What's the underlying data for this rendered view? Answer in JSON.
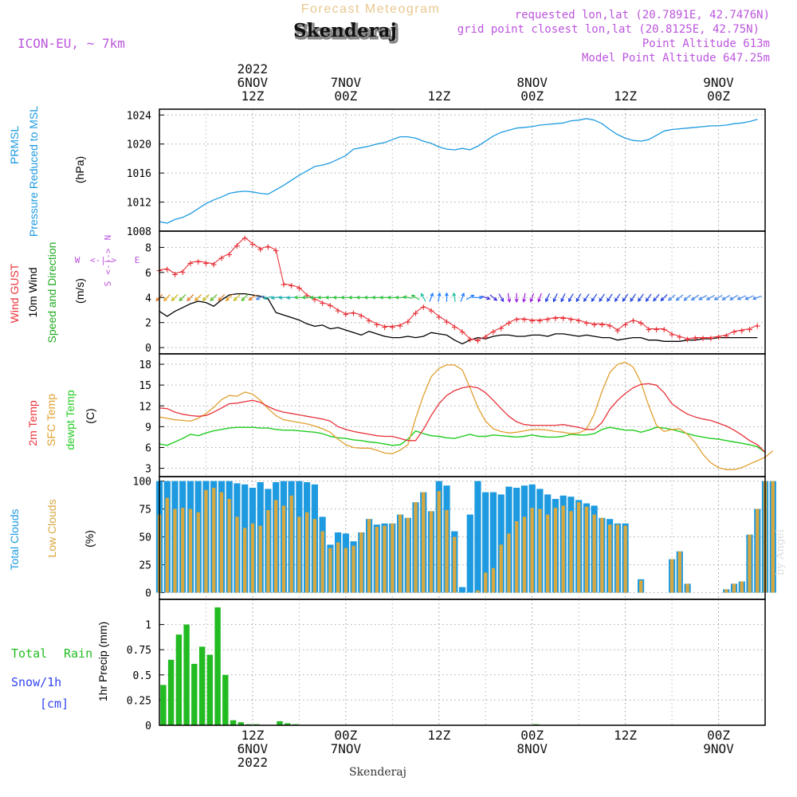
{
  "header": {
    "app_title": "Forecast Meteogram",
    "model": "ICON-EU, ~ 7km",
    "location": "Skenderaj",
    "requested": "requested lon,lat (20.7891E, 42.7476N)",
    "grid_point": "grid point closest lon,lat (20.8125E, 42.75N)",
    "point_altitude": "Point Altitude 613m",
    "model_altitude": "Model Point Altitude 647.25m",
    "credit": "by Angel",
    "footer_location": "Skenderaj"
  },
  "top_axis": {
    "labels": [
      {
        "t": 12,
        "lines": [
          "2022",
          "6NOV",
          "12Z"
        ]
      },
      {
        "t": 24,
        "lines": [
          "7NOV",
          "00Z"
        ]
      },
      {
        "t": 36,
        "lines": [
          "12Z"
        ]
      },
      {
        "t": 48,
        "lines": [
          "8NOV",
          "00Z"
        ]
      },
      {
        "t": 60,
        "lines": [
          "12Z"
        ]
      },
      {
        "t": 72,
        "lines": [
          "9NOV",
          "00Z"
        ]
      }
    ]
  },
  "bottom_axis": {
    "labels": [
      {
        "t": 12,
        "lines": [
          "12Z",
          "6NOV",
          "2022"
        ]
      },
      {
        "t": 24,
        "lines": [
          "00Z",
          "7NOV"
        ]
      },
      {
        "t": 36,
        "lines": [
          "12Z"
        ]
      },
      {
        "t": 48,
        "lines": [
          "00Z",
          "8NOV"
        ]
      },
      {
        "t": 60,
        "lines": [
          "12Z"
        ]
      },
      {
        "t": 72,
        "lines": [
          "00Z",
          "9NOV"
        ]
      }
    ]
  },
  "colors": {
    "pressure": "#1e9be0",
    "gust": "#e8333a",
    "wind": "#000000",
    "dir_label": "#22aa22",
    "temp": "#e8333a",
    "sfc": "#e0a030",
    "dew": "#22cc22",
    "total_cloud": "#1e9be0",
    "low_cloud": "#d8a840",
    "rain": "#22bb22",
    "snow": "#3344ee",
    "header": "#bb55dd",
    "title": "#e8c890"
  },
  "chart_data": [
    {
      "type": "line",
      "name": "pressure",
      "title": "PRMSL Pressure Reduced to MSL",
      "ylabel_lines": [
        "PRMSL",
        "Pressure Reduced to MSL"
      ],
      "unit": "(hPa)",
      "yticks": [
        1008,
        1012,
        1016,
        1020,
        1024
      ],
      "ylim": [
        1008,
        1024.8
      ],
      "x_start_hour": 0,
      "x_step_hours": 1,
      "values": [
        1009.3,
        1009.1,
        1009.6,
        1009.9,
        1010.4,
        1011.1,
        1011.8,
        1012.3,
        1012.7,
        1013.2,
        1013.4,
        1013.5,
        1013.4,
        1013.2,
        1013.1,
        1013.7,
        1014.3,
        1015.0,
        1015.7,
        1016.3,
        1016.9,
        1017.1,
        1017.4,
        1017.9,
        1018.4,
        1019.3,
        1019.5,
        1019.7,
        1020.0,
        1020.2,
        1020.6,
        1021.0,
        1021.0,
        1020.8,
        1020.4,
        1020.1,
        1019.6,
        1019.3,
        1019.2,
        1019.4,
        1019.2,
        1019.7,
        1020.4,
        1021.1,
        1021.6,
        1021.9,
        1022.2,
        1022.3,
        1022.4,
        1022.6,
        1022.7,
        1022.8,
        1022.9,
        1023.2,
        1023.3,
        1023.5,
        1023.3,
        1022.8,
        1022.0,
        1021.3,
        1020.8,
        1020.5,
        1020.4,
        1020.6,
        1021.2,
        1021.8,
        1022.0,
        1022.1,
        1022.2,
        1022.3,
        1022.4,
        1022.5,
        1022.5,
        1022.6,
        1022.8,
        1022.9,
        1023.1,
        1023.4
      ]
    },
    {
      "type": "line",
      "name": "wind",
      "title": "Wind GUST, 10m Wind Speed and Direction",
      "unit": "(m/s)",
      "compass_labels": {
        "n": "N",
        "w": "W",
        "e": "E",
        "s": "S"
      },
      "yticks": [
        0,
        2,
        4,
        6,
        8
      ],
      "ylim": [
        -0.5,
        9.3
      ],
      "x_start_hour": 0,
      "x_step_hours": 1,
      "series": [
        {
          "name": "Wind GUST",
          "values": [
            6.2,
            6.3,
            5.9,
            6.1,
            6.8,
            6.9,
            6.8,
            6.7,
            7.2,
            7.5,
            8.2,
            8.8,
            8.3,
            7.9,
            8.1,
            7.8,
            5.1,
            5.0,
            4.8,
            4.2,
            3.9,
            3.6,
            3.4,
            3.0,
            2.7,
            2.8,
            2.6,
            2.2,
            1.9,
            1.7,
            1.7,
            1.8,
            2.1,
            2.8,
            3.3,
            3.0,
            2.5,
            2.1,
            1.7,
            1.3,
            0.7,
            0.6,
            0.9,
            1.3,
            1.6,
            2.0,
            2.3,
            2.3,
            2.2,
            2.2,
            2.3,
            2.4,
            2.4,
            2.3,
            2.2,
            2.0,
            1.9,
            1.9,
            1.8,
            1.4,
            1.9,
            2.2,
            2.0,
            1.5,
            1.5,
            1.5,
            1.1,
            0.9,
            0.7,
            0.8,
            0.8,
            0.8,
            0.9,
            1.0,
            1.3,
            1.4,
            1.5,
            1.8
          ]
        },
        {
          "name": "10m Wind",
          "values": [
            2.9,
            2.5,
            2.9,
            3.2,
            3.5,
            3.7,
            3.6,
            3.3,
            3.8,
            4.2,
            4.3,
            4.3,
            4.2,
            4.1,
            3.9,
            2.8,
            2.6,
            2.4,
            2.2,
            1.9,
            1.7,
            1.8,
            1.5,
            1.6,
            1.4,
            1.2,
            1.0,
            1.3,
            1.1,
            0.9,
            0.8,
            0.8,
            0.9,
            0.8,
            0.9,
            1.2,
            1.1,
            1.0,
            0.6,
            0.3,
            0.6,
            0.8,
            0.7,
            0.9,
            1.0,
            1.0,
            0.9,
            0.9,
            1.0,
            1.0,
            0.9,
            1.1,
            1.1,
            1.0,
            0.9,
            1.0,
            0.9,
            0.8,
            0.8,
            0.6,
            0.7,
            0.8,
            0.8,
            0.6,
            0.6,
            0.5,
            0.5,
            0.5,
            0.6,
            0.6,
            0.7,
            0.7,
            0.8,
            0.8,
            0.8,
            0.8,
            0.8,
            0.8
          ]
        }
      ],
      "direction": {
        "name": "Direction",
        "note": "direction the wind blows toward, degrees (0=N, 90=E)",
        "x_start_hour": 0,
        "x_step_hours": 1,
        "values": [
          225,
          225,
          225,
          225,
          225,
          225,
          225,
          225,
          225,
          225,
          225,
          225,
          235,
          245,
          255,
          260,
          265,
          265,
          270,
          270,
          270,
          270,
          270,
          270,
          270,
          270,
          270,
          270,
          270,
          270,
          270,
          270,
          280,
          300,
          330,
          20,
          10,
          0,
          350,
          20,
          60,
          90,
          110,
          130,
          150,
          170,
          180,
          190,
          200,
          200,
          205,
          205,
          205,
          210,
          210,
          215,
          215,
          215,
          215,
          215,
          215,
          215,
          215,
          215,
          220,
          225,
          230,
          230,
          230,
          235,
          240,
          240,
          240,
          240,
          240,
          245,
          245,
          250
        ]
      }
    },
    {
      "type": "line",
      "name": "temperature",
      "title": "2m Temp, SFC Temp, dewpt Temp",
      "unit": "(C)",
      "yticks": [
        3,
        6,
        9,
        12,
        15,
        18
      ],
      "ylim": [
        1.8,
        19.5
      ],
      "x_start_hour": 0,
      "x_step_hours": 1,
      "series": [
        {
          "name": "2m Temp",
          "values": [
            11.7,
            11.6,
            11.1,
            10.8,
            10.6,
            10.5,
            10.6,
            11.1,
            11.7,
            12.3,
            12.4,
            12.6,
            12.8,
            12.5,
            11.9,
            11.4,
            11.1,
            10.9,
            10.7,
            10.5,
            10.3,
            10.1,
            9.8,
            9.0,
            8.6,
            8.3,
            8.1,
            7.9,
            7.7,
            7.6,
            7.6,
            7.3,
            7.0,
            7.0,
            8.6,
            10.6,
            12.3,
            13.5,
            14.2,
            14.6,
            14.8,
            14.6,
            13.9,
            12.8,
            11.6,
            10.5,
            9.7,
            9.3,
            9.2,
            9.2,
            9.2,
            9.2,
            9.3,
            9.1,
            8.9,
            8.6,
            8.6,
            9.6,
            11.5,
            12.8,
            13.8,
            14.6,
            15.1,
            15.2,
            15.0,
            13.9,
            12.3,
            11.5,
            10.8,
            10.4,
            10.1,
            9.9,
            9.5,
            9.1,
            8.5,
            7.8,
            7.0,
            6.4,
            5.3
          ]
        },
        {
          "name": "SFC Temp",
          "values": [
            10.4,
            10.2,
            10.0,
            9.9,
            9.8,
            10.2,
            10.9,
            11.8,
            12.9,
            13.5,
            13.4,
            14.0,
            13.7,
            12.8,
            11.6,
            10.6,
            10.0,
            9.8,
            9.6,
            9.4,
            9.1,
            8.7,
            8.2,
            7.2,
            6.4,
            6.0,
            5.9,
            5.9,
            5.6,
            5.2,
            5.1,
            5.6,
            6.4,
            10.2,
            13.5,
            16.2,
            17.4,
            17.9,
            17.9,
            17.2,
            14.6,
            11.8,
            9.8,
            8.7,
            8.3,
            8.1,
            8.2,
            8.4,
            8.6,
            8.6,
            8.5,
            8.3,
            8.2,
            8.0,
            8.1,
            8.6,
            10.8,
            14.1,
            16.8,
            18.0,
            18.3,
            17.6,
            15.4,
            12.1,
            9.2,
            8.3,
            8.6,
            8.7,
            7.9,
            6.7,
            5.0,
            3.8,
            3.1,
            2.8,
            2.8,
            3.1,
            3.6,
            4.1,
            4.6,
            5.5
          ]
        },
        {
          "name": "dewpt Temp",
          "values": [
            6.5,
            6.3,
            6.8,
            7.3,
            7.9,
            7.7,
            8.1,
            8.4,
            8.6,
            8.8,
            8.9,
            8.9,
            8.9,
            8.8,
            8.8,
            8.6,
            8.5,
            8.5,
            8.4,
            8.3,
            8.2,
            8.0,
            7.6,
            7.4,
            7.3,
            7.1,
            7.0,
            6.8,
            6.7,
            6.5,
            6.3,
            6.4,
            7.2,
            8.4,
            8.0,
            7.7,
            7.6,
            7.4,
            7.3,
            7.6,
            7.9,
            7.6,
            7.6,
            7.8,
            7.7,
            7.6,
            7.5,
            7.6,
            7.8,
            7.6,
            7.5,
            7.5,
            7.6,
            7.9,
            7.8,
            7.8,
            8.0,
            8.6,
            8.9,
            8.7,
            8.5,
            8.5,
            8.2,
            8.5,
            8.9,
            8.8,
            8.6,
            8.3,
            8.0,
            7.7,
            7.5,
            7.3,
            7.2,
            7.0,
            6.8,
            6.6,
            6.4,
            6.1,
            5.3
          ]
        }
      ]
    },
    {
      "type": "bar",
      "name": "clouds",
      "title": "Total Clouds, Low Clouds",
      "unit": "(%)",
      "yticks": [
        0,
        25,
        50,
        75,
        100
      ],
      "ylim": [
        -6,
        104
      ],
      "x_start_hour": 0,
      "x_step_hours": 1,
      "series": [
        {
          "name": "Total Clouds",
          "values": [
            100,
            100,
            100,
            100,
            100,
            100,
            100,
            100,
            100,
            100,
            98,
            97,
            94,
            99,
            93,
            99,
            100,
            100,
            100,
            99,
            97,
            68,
            43,
            54,
            53,
            46,
            54,
            66,
            61,
            62,
            62,
            70,
            67,
            81,
            90,
            73,
            100,
            96,
            55,
            5,
            70,
            100,
            90,
            90,
            88,
            95,
            94,
            96,
            97,
            93,
            88,
            84,
            87,
            86,
            83,
            80,
            78,
            67,
            66,
            62,
            62,
            0,
            12,
            0,
            0,
            0,
            30,
            37,
            8,
            0,
            0,
            0,
            0,
            3,
            8,
            10,
            52,
            75,
            100,
            100
          ]
        },
        {
          "name": "Low Clouds",
          "values": [
            70,
            85,
            75,
            76,
            75,
            72,
            92,
            94,
            90,
            84,
            68,
            58,
            62,
            60,
            74,
            83,
            78,
            87,
            68,
            72,
            66,
            55,
            40,
            45,
            40,
            42,
            54,
            66,
            59,
            60,
            62,
            70,
            67,
            81,
            90,
            73,
            91,
            74,
            50,
            0,
            0,
            2,
            18,
            22,
            43,
            53,
            64,
            68,
            76,
            75,
            70,
            76,
            78,
            73,
            81,
            77,
            70,
            67,
            61,
            61,
            60,
            0,
            11,
            0,
            0,
            0,
            30,
            37,
            8,
            0,
            0,
            0,
            0,
            3,
            8,
            10,
            52,
            75,
            100,
            100
          ]
        }
      ]
    },
    {
      "type": "bar",
      "name": "precipitation",
      "title": "1hr Precip",
      "ylabel": "1hr Precip (mm)",
      "legend": [
        "Total",
        "Rain",
        "Snow/1h",
        "[cm]"
      ],
      "yticks": [
        0,
        0.25,
        0.5,
        0.75,
        1
      ],
      "ytick_labels": [
        "0",
        "0.25",
        "0.5",
        "0.75",
        "1"
      ],
      "ylim": [
        0,
        1.25
      ],
      "x_start_hour": 0,
      "x_step_hours": 1,
      "series": [
        {
          "name": "Total Rain",
          "values": [
            0.4,
            0.65,
            0.9,
            1.0,
            0.61,
            0.78,
            0.7,
            1.17,
            0.5,
            0.05,
            0.03,
            0.01,
            0.01,
            0,
            0,
            0.04,
            0.02,
            0.01,
            0,
            0,
            0,
            0,
            0,
            0,
            0,
            0,
            0,
            0,
            0,
            0,
            0,
            0,
            0,
            0,
            0,
            0,
            0,
            0,
            0,
            0,
            0,
            0,
            0,
            0,
            0,
            0,
            0,
            0,
            0.01,
            0,
            0,
            0,
            0,
            0,
            0,
            0,
            0,
            0,
            0,
            0,
            0,
            0,
            0,
            0,
            0,
            0,
            0,
            0,
            0,
            0,
            0,
            0,
            0,
            0,
            0,
            0,
            0,
            0
          ]
        },
        {
          "name": "Snow/1h",
          "values": [
            0,
            0,
            0,
            0,
            0,
            0,
            0,
            0,
            0,
            0,
            0,
            0,
            0,
            0,
            0,
            0,
            0,
            0,
            0,
            0,
            0,
            0,
            0,
            0,
            0,
            0,
            0,
            0,
            0,
            0,
            0,
            0,
            0,
            0,
            0,
            0,
            0,
            0,
            0,
            0,
            0,
            0,
            0,
            0,
            0,
            0,
            0,
            0,
            0,
            0,
            0,
            0,
            0,
            0,
            0,
            0,
            0,
            0,
            0,
            0,
            0,
            0,
            0,
            0,
            0,
            0,
            0,
            0,
            0,
            0,
            0,
            0,
            0,
            0,
            0,
            0,
            0,
            0,
            0
          ]
        }
      ]
    }
  ]
}
